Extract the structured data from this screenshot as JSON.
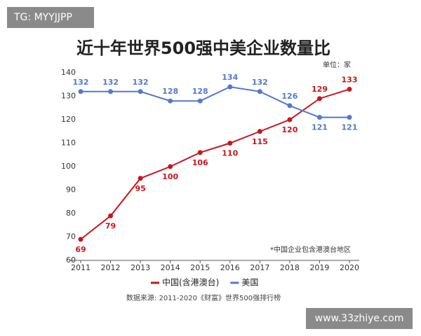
{
  "chart_data": {
    "type": "line",
    "title": "近十年世界500强中美企业数量比",
    "unit_label": "单位：家",
    "note": "*中国企业包含港澳台地区",
    "source": "数据来源: 2011-2020《财富》世界500强排行榜",
    "categories": [
      "2011",
      "2012",
      "2013",
      "2014",
      "2015",
      "2016",
      "2017",
      "2018",
      "2019",
      "2020"
    ],
    "series": [
      {
        "name": "中国(含港澳台)",
        "color": "#c8161d",
        "values": [
          69,
          79,
          95,
          100,
          106,
          110,
          115,
          120,
          129,
          133
        ]
      },
      {
        "name": "美国",
        "color": "#5578c9",
        "values": [
          132,
          132,
          132,
          128,
          128,
          134,
          132,
          126,
          121,
          121
        ]
      }
    ],
    "ylim": [
      60,
      140
    ],
    "yticks": [
      60,
      70,
      80,
      90,
      100,
      110,
      120,
      130,
      140
    ],
    "grid": false
  },
  "watermarks": [
    "TG: MYYJJPP",
    "www.33zhiye.com"
  ]
}
